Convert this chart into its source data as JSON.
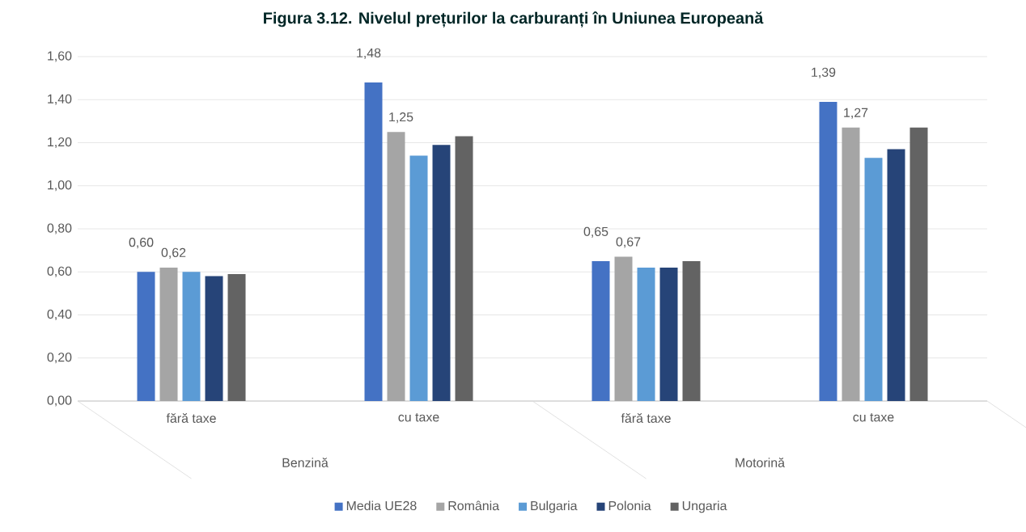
{
  "chart_data": {
    "type": "bar",
    "title": "Figura 3.12. Nivelul prețurilor la carburanți în Uniunea Europeană",
    "categories": [
      "fără taxe",
      "cu taxe",
      "fără taxe",
      "cu taxe"
    ],
    "annotations": [
      "Benzină",
      "Motorină"
    ],
    "series": [
      {
        "name": "Media UE28",
        "color": "#4472c4",
        "values": [
          0.6,
          1.48,
          0.65,
          1.39
        ],
        "value_labels": [
          "0,60",
          "1,48",
          "0,65",
          "1,39"
        ]
      },
      {
        "name": "România",
        "color": "#a5a5a5",
        "values": [
          0.62,
          1.25,
          0.67,
          1.27
        ],
        "value_labels": [
          "0,62",
          "1,25",
          "0,67",
          "1,27"
        ]
      },
      {
        "name": "Bulgaria",
        "color": "#5b9bd5",
        "values": [
          0.6,
          1.14,
          0.62,
          1.13
        ]
      },
      {
        "name": "Polonia",
        "color": "#264478",
        "values": [
          0.58,
          1.19,
          0.62,
          1.17
        ]
      },
      {
        "name": "Ungaria",
        "color": "#636363",
        "values": [
          0.59,
          1.23,
          0.65,
          1.27
        ]
      }
    ],
    "ylim": [
      0,
      1.6
    ],
    "yticks": [
      {
        "value": 0,
        "label": "0,00"
      },
      {
        "value": 0.2,
        "label": "0,20"
      },
      {
        "value": 0.4,
        "label": "0,40"
      },
      {
        "value": 0.6,
        "label": "0,60"
      },
      {
        "value": 0.8,
        "label": "0,80"
      },
      {
        "value": 1.0,
        "label": "1,00"
      },
      {
        "value": 1.2,
        "label": "1,20"
      },
      {
        "value": 1.4,
        "label": "1,40"
      },
      {
        "value": 1.6,
        "label": "1,60"
      }
    ],
    "grid": "y",
    "legend": "bottom"
  }
}
